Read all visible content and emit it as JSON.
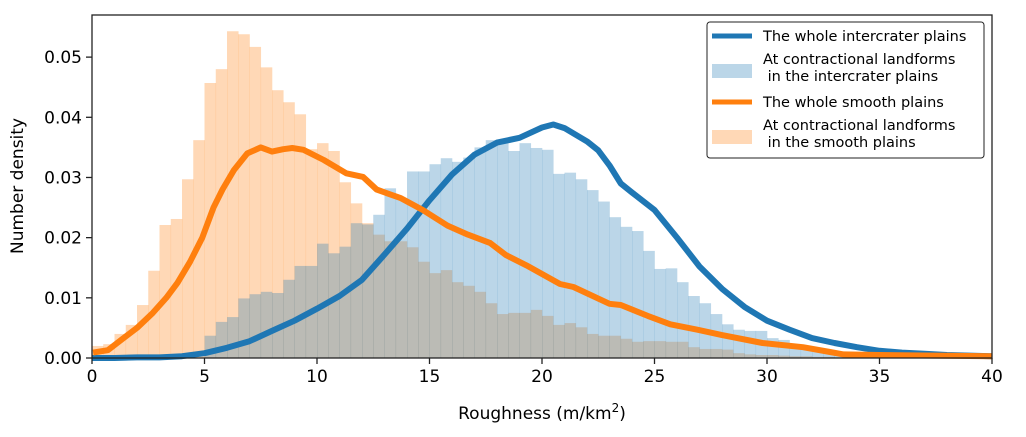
{
  "chart_data": {
    "type": "histogram+line",
    "xlabel": "Roughness (m/km",
    "xlabel_sup": "2",
    "xlabel_close": ")",
    "ylabel": "Number density",
    "xlim": [
      0,
      40
    ],
    "ylim": [
      0,
      0.057
    ],
    "xticks": [
      "0",
      "5",
      "10",
      "15",
      "20",
      "25",
      "30",
      "35",
      "40"
    ],
    "xtick_values": [
      0,
      5,
      10,
      15,
      20,
      25,
      30,
      35,
      40
    ],
    "yticks": [
      "0.00",
      "0.01",
      "0.02",
      "0.03",
      "0.04",
      "0.05"
    ],
    "ytick_values": [
      0,
      0.01,
      0.02,
      0.03,
      0.04,
      0.05
    ],
    "legend_position": "top-right",
    "colors": {
      "blue": "#1f77b4",
      "orange": "#ff7f0e"
    },
    "bin_width": 0.5,
    "series": [
      {
        "name": "The whole intercrater plains",
        "kind": "line",
        "color": "#1f77b4",
        "points": [
          [
            0,
            0
          ],
          [
            1,
            0
          ],
          [
            2,
            0.0001
          ],
          [
            3,
            0.0001
          ],
          [
            4,
            0.0003
          ],
          [
            5,
            0.0008
          ],
          [
            6,
            0.0017
          ],
          [
            7,
            0.0028
          ],
          [
            8,
            0.0045
          ],
          [
            9,
            0.0062
          ],
          [
            10,
            0.0082
          ],
          [
            11,
            0.0103
          ],
          [
            12,
            0.013
          ],
          [
            13,
            0.0172
          ],
          [
            14,
            0.0215
          ],
          [
            15,
            0.0262
          ],
          [
            16,
            0.0305
          ],
          [
            17,
            0.0338
          ],
          [
            18,
            0.0358
          ],
          [
            19,
            0.0366
          ],
          [
            20,
            0.0383
          ],
          [
            20.5,
            0.0388
          ],
          [
            21,
            0.0382
          ],
          [
            22,
            0.036
          ],
          [
            22.5,
            0.0345
          ],
          [
            23,
            0.032
          ],
          [
            23.5,
            0.029
          ],
          [
            24,
            0.0275
          ],
          [
            25,
            0.0246
          ],
          [
            26,
            0.02
          ],
          [
            27,
            0.0152
          ],
          [
            28,
            0.0115
          ],
          [
            29,
            0.0085
          ],
          [
            30,
            0.0062
          ],
          [
            31,
            0.0047
          ],
          [
            32,
            0.0033
          ],
          [
            33,
            0.0025
          ],
          [
            34,
            0.0018
          ],
          [
            35,
            0.0012
          ],
          [
            36,
            0.0009
          ],
          [
            37,
            0.0007
          ],
          [
            38,
            0.0005
          ],
          [
            39,
            0.0004
          ],
          [
            40,
            0.0003
          ]
        ]
      },
      {
        "name": "At contractional landforms\n in the intercrater plains",
        "label_lines": [
          "At contractional landforms",
          " in the intercrater plains"
        ],
        "kind": "hist",
        "color": "#1f77b4",
        "values": [
          0,
          0,
          0,
          0,
          0,
          0,
          0,
          0,
          0,
          0,
          0.0037,
          0.006,
          0.0068,
          0.0099,
          0.0106,
          0.011,
          0.0108,
          0.013,
          0.0153,
          0.0153,
          0.019,
          0.0174,
          0.0185,
          0.0224,
          0.0222,
          0.0238,
          0.0282,
          0.0264,
          0.031,
          0.031,
          0.0322,
          0.0332,
          0.0326,
          0.0333,
          0.035,
          0.0362,
          0.036,
          0.0344,
          0.0357,
          0.0349,
          0.0346,
          0.0306,
          0.0308,
          0.0297,
          0.0279,
          0.026,
          0.0234,
          0.0218,
          0.0211,
          0.0178,
          0.0148,
          0.0149,
          0.0126,
          0.0103,
          0.0091,
          0.0073,
          0.0056,
          0.0047,
          0.0045,
          0.0045,
          0.0033,
          0.003,
          0.0018,
          0.0014,
          0.001,
          0.0008,
          0.0006,
          0.0005,
          0.0004,
          0.0003,
          0.0003,
          0.0002,
          0.0002,
          0.0002,
          0.0001,
          0.0001,
          0.0001,
          0.0001,
          0.0001,
          0.0001
        ]
      },
      {
        "name": "The whole smooth plains",
        "kind": "line",
        "color": "#ff7f0e",
        "points": [
          [
            0.05,
            0.0009
          ],
          [
            0.7,
            0.0013
          ],
          [
            1.4,
            0.0033
          ],
          [
            2,
            0.005
          ],
          [
            2.7,
            0.0075
          ],
          [
            3.3,
            0.01
          ],
          [
            3.8,
            0.0125
          ],
          [
            4.36,
            0.016
          ],
          [
            4.9,
            0.02
          ],
          [
            5.4,
            0.025
          ],
          [
            5.8,
            0.028
          ],
          [
            6.3,
            0.0312
          ],
          [
            6.9,
            0.034
          ],
          [
            7.5,
            0.035
          ],
          [
            8,
            0.0343
          ],
          [
            8.5,
            0.0347
          ],
          [
            8.9,
            0.0349
          ],
          [
            9.4,
            0.0346
          ],
          [
            10.3,
            0.0329
          ],
          [
            11.3,
            0.0307
          ],
          [
            12.05,
            0.0301
          ],
          [
            12.65,
            0.028
          ],
          [
            13.24,
            0.0272
          ],
          [
            13.7,
            0.0266
          ],
          [
            14.7,
            0.0246
          ],
          [
            15.8,
            0.022
          ],
          [
            16.7,
            0.0205
          ],
          [
            17.7,
            0.0191
          ],
          [
            18.4,
            0.0171
          ],
          [
            19.3,
            0.0154
          ],
          [
            20.8,
            0.0123
          ],
          [
            21.4,
            0.0118
          ],
          [
            23,
            0.009
          ],
          [
            23.5,
            0.0088
          ],
          [
            24.7,
            0.007
          ],
          [
            25.7,
            0.0056
          ],
          [
            26.9,
            0.0047
          ],
          [
            28,
            0.0038
          ],
          [
            29.8,
            0.0025
          ],
          [
            31.6,
            0.0018
          ],
          [
            32.8,
            0.001
          ],
          [
            33.4,
            0.0006
          ],
          [
            35,
            0.0005
          ],
          [
            40,
            0.0003
          ]
        ]
      },
      {
        "name": "At contractional landforms\n in the smooth plains",
        "label_lines": [
          "At contractional landforms",
          " in the smooth plains"
        ],
        "kind": "hist",
        "color": "#ff7f0e",
        "values": [
          0.002,
          0.0023,
          0.004,
          0.0055,
          0.0088,
          0.0145,
          0.0221,
          0.0231,
          0.0297,
          0.0362,
          0.0457,
          0.048,
          0.0543,
          0.0538,
          0.0517,
          0.0483,
          0.0445,
          0.0425,
          0.0405,
          0.0347,
          0.0357,
          0.0344,
          0.0292,
          0.0257,
          0.0224,
          0.0205,
          0.0194,
          0.0194,
          0.0184,
          0.016,
          0.0141,
          0.0146,
          0.0126,
          0.012,
          0.011,
          0.0091,
          0.0073,
          0.0075,
          0.0075,
          0.008,
          0.007,
          0.0055,
          0.0058,
          0.0051,
          0.004,
          0.0037,
          0.0037,
          0.0032,
          0.0027,
          0.0028,
          0.0028,
          0.0027,
          0.0027,
          0.0018,
          0.0015,
          0.0015,
          0.0014,
          0.0008,
          0.0006,
          0.0005,
          0.0005,
          0.0004,
          0.0003,
          0.0003,
          0.0002,
          0.0002,
          0.0001,
          0.0001,
          0.0001,
          0,
          0,
          0,
          0,
          0,
          0,
          0,
          0,
          0,
          0,
          0
        ]
      }
    ]
  }
}
